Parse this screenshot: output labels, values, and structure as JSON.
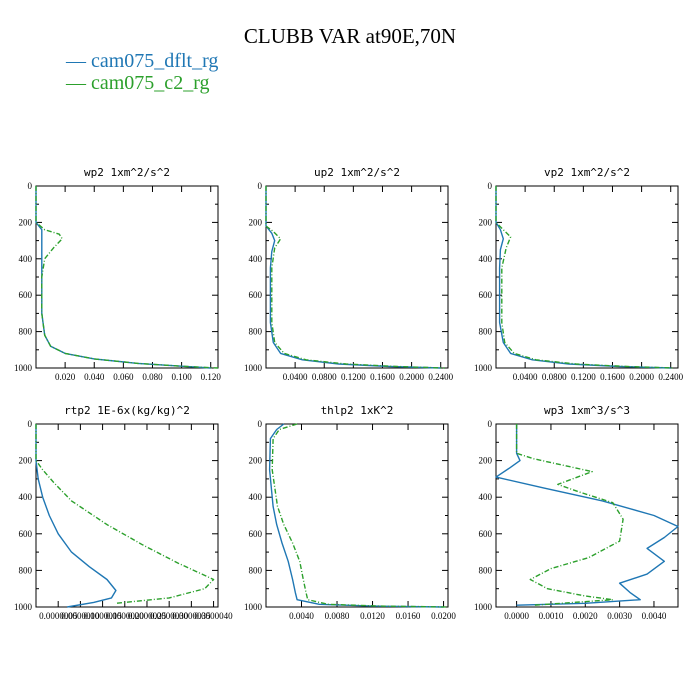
{
  "title": "CLUBB VAR at90E,70N",
  "legend": [
    {
      "name": "cam075_dflt_rg",
      "color": "#1f77b4",
      "dash": "solid"
    },
    {
      "name": "cam075_c2_rg",
      "color": "#2ca02c",
      "dash": "dashdot"
    }
  ],
  "chart_data": [
    {
      "type": "line",
      "title": "wp2  1xm^2/s^2",
      "xlim": [
        0,
        0.125
      ],
      "ylim": [
        1000,
        0
      ],
      "xticks": [
        0.02,
        0.04,
        0.06,
        0.08,
        0.1,
        0.12
      ],
      "xtick_labels": [
        "0.020",
        "0.040",
        "0.060",
        "0.080",
        "0.100",
        "0.120"
      ],
      "yticks": [
        0,
        200,
        400,
        600,
        800,
        1000
      ],
      "ytick_labels": [
        "0",
        "200",
        "400",
        "600",
        "800",
        "1000"
      ],
      "series": [
        {
          "name": "cam075_dflt_rg",
          "color": "#1f77b4",
          "dash": "solid",
          "x": [
            0,
            0,
            0.004,
            0.004,
            0.004,
            0.004,
            0.006,
            0.01,
            0.02,
            0.04,
            0.07,
            0.1,
            0.12
          ],
          "y": [
            0,
            200,
            240,
            350,
            500,
            700,
            820,
            880,
            920,
            950,
            975,
            990,
            1000
          ]
        },
        {
          "name": "cam075_c2_rg",
          "color": "#2ca02c",
          "dash": "dashdot",
          "x": [
            0,
            0,
            0.006,
            0.016,
            0.018,
            0.012,
            0.006,
            0.004,
            0.004,
            0.006,
            0.01,
            0.02,
            0.04,
            0.07,
            0.1,
            0.125
          ],
          "y": [
            0,
            200,
            240,
            265,
            290,
            340,
            400,
            500,
            700,
            820,
            880,
            920,
            950,
            975,
            990,
            1000
          ]
        }
      ]
    },
    {
      "type": "line",
      "title": "up2  1xm^2/s^2",
      "xlim": [
        0,
        0.25
      ],
      "ylim": [
        1000,
        0
      ],
      "xticks": [
        0.04,
        0.08,
        0.12,
        0.16,
        0.2,
        0.24
      ],
      "xtick_labels": [
        "0.0400",
        "0.0800",
        "0.1200",
        "0.1600",
        "0.2000",
        "0.2400"
      ],
      "yticks": [
        0,
        200,
        400,
        600,
        800,
        1000
      ],
      "ytick_labels": [
        "0",
        "200",
        "400",
        "600",
        "800",
        "1000"
      ],
      "series": [
        {
          "name": "cam075_dflt_rg",
          "color": "#1f77b4",
          "dash": "solid",
          "x": [
            0,
            0,
            0.008,
            0.012,
            0.008,
            0.006,
            0.006,
            0.01,
            0.02,
            0.05,
            0.1,
            0.17,
            0.24
          ],
          "y": [
            0,
            220,
            260,
            300,
            360,
            450,
            750,
            860,
            920,
            955,
            978,
            992,
            1000
          ]
        },
        {
          "name": "cam075_c2_rg",
          "color": "#2ca02c",
          "dash": "dashdot",
          "x": [
            0,
            0,
            0.01,
            0.02,
            0.012,
            0.008,
            0.008,
            0.012,
            0.025,
            0.055,
            0.11,
            0.18,
            0.245
          ],
          "y": [
            0,
            220,
            250,
            290,
            340,
            450,
            750,
            860,
            920,
            955,
            978,
            992,
            1000
          ]
        }
      ]
    },
    {
      "type": "line",
      "title": "vp2  1xm^2/s^2",
      "xlim": [
        0,
        0.25
      ],
      "ylim": [
        1000,
        0
      ],
      "xticks": [
        0.04,
        0.08,
        0.12,
        0.16,
        0.2,
        0.24
      ],
      "xtick_labels": [
        "0.0400",
        "0.0800",
        "0.1200",
        "0.1600",
        "0.2000",
        "0.2400"
      ],
      "yticks": [
        0,
        200,
        400,
        600,
        800,
        1000
      ],
      "ytick_labels": [
        "0",
        "200",
        "400",
        "600",
        "800",
        "1000"
      ],
      "series": [
        {
          "name": "cam075_dflt_rg",
          "color": "#1f77b4",
          "dash": "solid",
          "x": [
            0,
            0,
            0.006,
            0.01,
            0.006,
            0.005,
            0.005,
            0.01,
            0.02,
            0.05,
            0.1,
            0.17,
            0.24
          ],
          "y": [
            0,
            200,
            240,
            290,
            350,
            450,
            750,
            860,
            920,
            955,
            978,
            992,
            1000
          ]
        },
        {
          "name": "cam075_c2_rg",
          "color": "#2ca02c",
          "dash": "dashdot",
          "x": [
            0,
            0,
            0.01,
            0.02,
            0.014,
            0.008,
            0.008,
            0.012,
            0.025,
            0.055,
            0.11,
            0.18,
            0.245
          ],
          "y": [
            0,
            200,
            240,
            280,
            340,
            450,
            750,
            860,
            920,
            955,
            978,
            992,
            1000
          ]
        }
      ]
    },
    {
      "type": "line",
      "title": "rtp2  1E-6x(kg/kg)^2",
      "xlim": [
        0,
        4.1e-06
      ],
      "ylim": [
        1000,
        0
      ],
      "xticks": [
        5e-07,
        1e-06,
        1.5e-06,
        2e-06,
        2.5e-06,
        3e-06,
        3.5e-06,
        4e-06
      ],
      "xtick_labels": [
        "0.0000005",
        "0.0000010",
        "0.0000015",
        "0.0000020",
        "0.0000025",
        "0.0000030",
        "0.0000035",
        "0.0000040"
      ],
      "yticks": [
        0,
        200,
        400,
        600,
        800,
        1000
      ],
      "ytick_labels": [
        "0",
        "200",
        "400",
        "600",
        "800",
        "1000"
      ],
      "series": [
        {
          "name": "cam075_dflt_rg",
          "color": "#1f77b4",
          "dash": "solid",
          "x": [
            0,
            0,
            5e-08,
            1.5e-07,
            3e-07,
            5e-07,
            8e-07,
            1.2e-06,
            1.6e-06,
            1.8e-06,
            1.7e-06,
            1.3e-06,
            7e-07
          ],
          "y": [
            0,
            200,
            300,
            400,
            500,
            600,
            700,
            780,
            850,
            910,
            950,
            975,
            1000
          ]
        },
        {
          "name": "cam075_c2_rg",
          "color": "#2ca02c",
          "dash": "dashdot",
          "x": [
            0,
            0,
            1.5e-07,
            4e-07,
            8e-07,
            1.6e-06,
            2.4e-06,
            3.2e-06,
            4e-06,
            3.8e-06,
            3e-06,
            1.8e-06
          ],
          "y": [
            0,
            200,
            250,
            320,
            420,
            550,
            660,
            760,
            850,
            900,
            950,
            980
          ]
        }
      ]
    },
    {
      "type": "line",
      "title": "thlp2  1xK^2",
      "xlim": [
        0,
        0.0205
      ],
      "ylim": [
        1000,
        0
      ],
      "xticks": [
        0.004,
        0.008,
        0.012,
        0.016,
        0.02
      ],
      "xtick_labels": [
        "0.0040",
        "0.0080",
        "0.0120",
        "0.0160",
        "0.0200"
      ],
      "yticks": [
        0,
        200,
        400,
        600,
        800,
        1000
      ],
      "ytick_labels": [
        "0",
        "200",
        "400",
        "600",
        "800",
        "1000"
      ],
      "series": [
        {
          "name": "cam075_dflt_rg",
          "color": "#1f77b4",
          "dash": "solid",
          "x": [
            0.002,
            0.0012,
            0.0005,
            0.0004,
            0.0008,
            0.0012,
            0.0018,
            0.0025,
            0.003,
            0.0033,
            0.0035,
            0.006,
            0.012,
            0.02
          ],
          "y": [
            0,
            30,
            80,
            250,
            450,
            550,
            650,
            750,
            850,
            920,
            960,
            985,
            995,
            1000
          ]
        },
        {
          "name": "cam075_c2_rg",
          "color": "#2ca02c",
          "dash": "dashdot",
          "x": [
            0.0035,
            0.0015,
            0.0008,
            0.0007,
            0.0013,
            0.002,
            0.003,
            0.0038,
            0.0042,
            0.0045,
            0.0047,
            0.007,
            0.013,
            0.0205
          ],
          "y": [
            0,
            30,
            80,
            250,
            450,
            550,
            650,
            750,
            850,
            920,
            960,
            985,
            995,
            1000
          ]
        }
      ]
    },
    {
      "type": "line",
      "title": "wp3  1xm^3/s^3",
      "xlim": [
        -0.0006,
        0.0047
      ],
      "ylim": [
        1000,
        0
      ],
      "xticks": [
        0,
        0.001,
        0.002,
        0.003,
        0.004
      ],
      "xtick_labels": [
        "0.0000",
        "0.0010",
        "0.0020",
        "0.0030",
        "0.0040"
      ],
      "yticks": [
        0,
        200,
        400,
        600,
        800,
        1000
      ],
      "ytick_labels": [
        "0",
        "200",
        "400",
        "600",
        "800",
        "1000"
      ],
      "series": [
        {
          "name": "cam075_dflt_rg",
          "color": "#1f77b4",
          "dash": "solid",
          "x": [
            0,
            0,
            0.0001,
            -0.0002,
            -0.0006,
            0.0008,
            0.0025,
            0.004,
            0.0047,
            0.0043,
            0.0038,
            0.0043,
            0.0038,
            0.003,
            0.0033,
            0.0036,
            0.002,
            0
          ],
          "y": [
            0,
            160,
            200,
            240,
            290,
            350,
            420,
            500,
            560,
            620,
            680,
            750,
            820,
            870,
            920,
            960,
            980,
            990
          ]
        },
        {
          "name": "cam075_c2_rg",
          "color": "#2ca02c",
          "dash": "dashdot",
          "x": [
            0,
            0,
            0.0005,
            0.0022,
            0.0012,
            0.0018,
            0.0028,
            0.0031,
            0.003,
            0.0021,
            0.001,
            0.0004,
            0.0009,
            0.002,
            0.0028,
            0.0005
          ],
          "y": [
            0,
            160,
            190,
            260,
            330,
            370,
            430,
            520,
            640,
            730,
            790,
            850,
            900,
            940,
            960,
            990
          ]
        }
      ]
    }
  ]
}
